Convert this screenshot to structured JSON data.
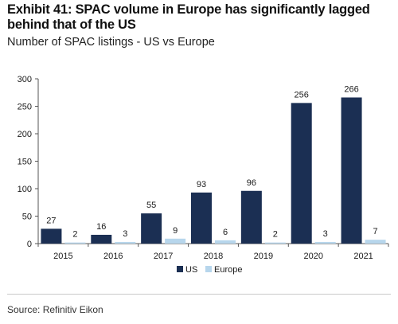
{
  "header": {
    "title": "Exhibit 41: SPAC volume in Europe has significantly lagged behind that of the US",
    "subtitle": "Number of SPAC listings - US vs Europe"
  },
  "footer": {
    "source": "Source: Refinitiv Eikon"
  },
  "colors": {
    "us": "#1b2f53",
    "europe": "#b7d6ec",
    "axis": "#555555",
    "text": "#1a1a1a"
  },
  "chart_data": {
    "type": "bar",
    "categories": [
      "2015",
      "2016",
      "2017",
      "2018",
      "2019",
      "2020",
      "2021"
    ],
    "series": [
      {
        "name": "US",
        "values": [
          27,
          16,
          55,
          93,
          96,
          256,
          266
        ]
      },
      {
        "name": "Europe",
        "values": [
          2,
          3,
          9,
          6,
          2,
          3,
          7
        ]
      }
    ],
    "ylim": [
      0,
      300
    ],
    "yticks": [
      0,
      50,
      100,
      150,
      200,
      250,
      300
    ],
    "data_labels": true,
    "grid": false,
    "legend": "bottom-center",
    "title": "",
    "xlabel": "",
    "ylabel": ""
  }
}
